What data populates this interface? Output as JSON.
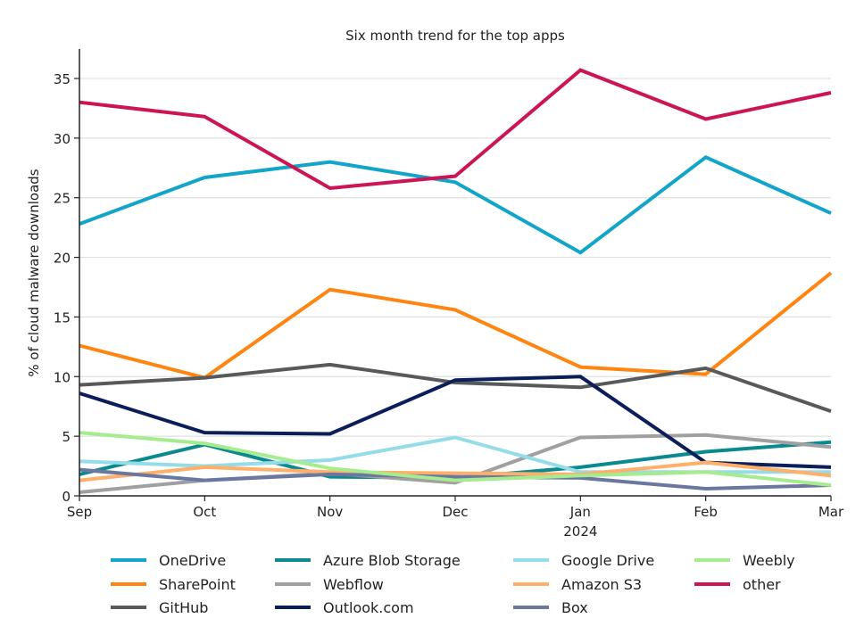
{
  "chart_data": {
    "type": "line",
    "title": "Six month trend for the top apps",
    "xlabel": "",
    "ylabel": "% of cloud malware downloads",
    "categories": [
      "Sep",
      "Oct",
      "Nov",
      "Dec",
      "Jan",
      "Feb",
      "Mar"
    ],
    "category_sublabels": [
      "",
      "",
      "",
      "",
      "2024",
      "",
      ""
    ],
    "ylim": [
      0,
      37.5
    ],
    "yticks": [
      0,
      5,
      10,
      15,
      20,
      25,
      30,
      35
    ],
    "grid": "horizontal",
    "legend_position": "bottom",
    "series": [
      {
        "name": "OneDrive",
        "color": "#12a5c9",
        "values": [
          22.8,
          26.7,
          28.0,
          26.3,
          20.4,
          28.4,
          23.7
        ]
      },
      {
        "name": "SharePoint",
        "color": "#ff8510",
        "values": [
          12.6,
          9.9,
          17.3,
          15.6,
          10.8,
          10.2,
          18.7
        ]
      },
      {
        "name": "GitHub",
        "color": "#58595b",
        "values": [
          9.3,
          9.9,
          11.0,
          9.5,
          9.1,
          10.7,
          7.1
        ]
      },
      {
        "name": "Azure Blob Storage",
        "color": "#0a8a8f",
        "values": [
          1.8,
          4.3,
          1.6,
          1.5,
          2.4,
          3.7,
          4.5
        ]
      },
      {
        "name": "Webflow",
        "color": "#a0a0a0",
        "values": [
          0.3,
          1.3,
          1.9,
          1.1,
          4.9,
          5.1,
          4.1
        ]
      },
      {
        "name": "Outlook.com",
        "color": "#0b1e5a",
        "values": [
          8.6,
          5.3,
          5.2,
          9.7,
          10.0,
          2.8,
          2.4
        ]
      },
      {
        "name": "Google Drive",
        "color": "#95dce9",
        "values": [
          2.9,
          2.5,
          3.0,
          4.9,
          2.0,
          2.0,
          2.0
        ]
      },
      {
        "name": "Amazon S3",
        "color": "#ffaf6a",
        "values": [
          1.3,
          2.4,
          2.0,
          1.9,
          1.8,
          2.8,
          1.7
        ]
      },
      {
        "name": "Box",
        "color": "#6a78a0",
        "values": [
          2.2,
          1.3,
          1.8,
          1.6,
          1.5,
          0.6,
          0.9
        ]
      },
      {
        "name": "Weebly",
        "color": "#a6eb8e",
        "values": [
          5.3,
          4.4,
          2.3,
          1.3,
          1.7,
          2.0,
          0.9
        ]
      },
      {
        "name": "other",
        "color": "#cc1556",
        "values": [
          33.0,
          31.8,
          25.8,
          26.8,
          35.7,
          31.6,
          33.8
        ]
      }
    ],
    "legend_order": [
      [
        "OneDrive",
        "SharePoint",
        "GitHub"
      ],
      [
        "Azure Blob Storage",
        "Webflow",
        "Outlook.com"
      ],
      [
        "Google Drive",
        "Amazon S3",
        "Box"
      ],
      [
        "Weebly",
        "other"
      ]
    ]
  }
}
